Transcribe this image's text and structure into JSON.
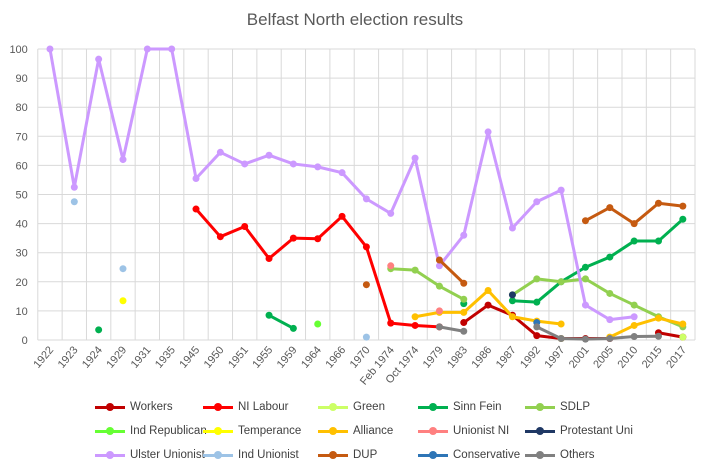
{
  "chart_data": {
    "type": "line",
    "title": "Belfast North election results",
    "xlabel": "",
    "ylabel": "",
    "ylim": [
      0,
      100
    ],
    "yticks": [
      0,
      10,
      20,
      30,
      40,
      50,
      60,
      70,
      80,
      90,
      100
    ],
    "grid": true,
    "legend_position": "bottom",
    "categories": [
      "1922",
      "1923",
      "1924",
      "1929",
      "1931",
      "1935",
      "1945",
      "1950",
      "1951",
      "1955",
      "1959",
      "1964",
      "1966",
      "1970",
      "Feb 1974",
      "Oct 1974",
      "1979",
      "1983",
      "1986",
      "1987",
      "1992",
      "1997",
      "2001",
      "2005",
      "2010",
      "2015",
      "2017"
    ],
    "series": [
      {
        "name": "Workers",
        "color": "#c00000",
        "values": [
          null,
          null,
          null,
          null,
          null,
          null,
          null,
          null,
          null,
          null,
          null,
          null,
          null,
          null,
          null,
          null,
          null,
          6,
          12,
          8.5,
          1.5,
          0.5,
          0.5,
          0.5,
          null,
          2.5,
          1
        ]
      },
      {
        "name": "NI Labour",
        "color": "#ff0000",
        "values": [
          null,
          null,
          null,
          null,
          null,
          null,
          45,
          35.5,
          39,
          28,
          35,
          34.8,
          42.5,
          32,
          5.8,
          5,
          4.5,
          null,
          null,
          null,
          null,
          null,
          null,
          null,
          null,
          null,
          null
        ]
      },
      {
        "name": "Green",
        "color": "#ccff66",
        "values": [
          null,
          null,
          null,
          null,
          null,
          null,
          null,
          null,
          null,
          null,
          null,
          null,
          null,
          null,
          null,
          null,
          null,
          null,
          null,
          null,
          null,
          0.5,
          null,
          null,
          null,
          null,
          1
        ]
      },
      {
        "name": "Sinn Fein",
        "color": "#00b050",
        "values": [
          null,
          null,
          3.5,
          null,
          null,
          null,
          null,
          null,
          null,
          8.5,
          4,
          null,
          null,
          null,
          null,
          null,
          null,
          12.5,
          null,
          13.5,
          13,
          20,
          25,
          28.5,
          34,
          34,
          41.5
        ]
      },
      {
        "name": "SDLP",
        "color": "#92d050",
        "values": [
          null,
          null,
          null,
          null,
          null,
          null,
          null,
          null,
          null,
          null,
          null,
          null,
          null,
          null,
          24.5,
          24,
          18.5,
          14,
          null,
          15.5,
          21,
          20,
          21,
          16,
          12,
          8,
          4.5
        ]
      },
      {
        "name": "Ind Republican",
        "color": "#66ff33",
        "values": [
          null,
          null,
          null,
          null,
          null,
          null,
          null,
          null,
          null,
          null,
          null,
          5.5,
          null,
          null,
          null,
          null,
          null,
          null,
          null,
          null,
          null,
          null,
          null,
          null,
          null,
          null,
          null
        ]
      },
      {
        "name": "Temperance",
        "color": "#ffff00",
        "values": [
          null,
          null,
          null,
          13.5,
          null,
          null,
          null,
          null,
          null,
          null,
          null,
          null,
          null,
          null,
          null,
          null,
          null,
          null,
          null,
          null,
          null,
          null,
          null,
          null,
          null,
          null,
          null
        ]
      },
      {
        "name": "Alliance",
        "color": "#ffc000",
        "values": [
          null,
          null,
          null,
          null,
          null,
          null,
          null,
          null,
          null,
          null,
          null,
          null,
          null,
          null,
          null,
          8,
          9.5,
          9.5,
          17,
          8,
          6.5,
          5.5,
          null,
          1,
          5,
          7.5,
          5.5
        ]
      },
      {
        "name": "Unionist NI",
        "color": "#ff8080",
        "values": [
          null,
          null,
          null,
          null,
          null,
          null,
          null,
          null,
          null,
          null,
          null,
          null,
          null,
          null,
          25.5,
          null,
          10,
          null,
          null,
          null,
          null,
          null,
          null,
          null,
          null,
          null,
          null
        ]
      },
      {
        "name": "Protestant Uni",
        "color": "#1f3864",
        "values": [
          null,
          null,
          null,
          null,
          null,
          null,
          null,
          null,
          null,
          null,
          null,
          null,
          null,
          null,
          null,
          null,
          null,
          null,
          null,
          15.5,
          null,
          null,
          null,
          null,
          null,
          null,
          null
        ]
      },
      {
        "name": "Ulster Unionist",
        "color": "#cc99ff",
        "values": [
          100,
          52.5,
          96.5,
          62,
          100,
          100,
          55.5,
          64.5,
          60.5,
          63.5,
          60.5,
          59.5,
          57.5,
          48.5,
          43.5,
          62.5,
          25.5,
          36,
          71.5,
          38.5,
          47.5,
          51.5,
          12,
          7,
          8,
          null,
          null
        ]
      },
      {
        "name": "Ind Unionist",
        "color": "#9dc3e6",
        "values": [
          null,
          47.5,
          null,
          24.5,
          null,
          null,
          null,
          null,
          null,
          null,
          null,
          null,
          null,
          1,
          null,
          null,
          null,
          null,
          null,
          null,
          null,
          null,
          null,
          null,
          null,
          null,
          null
        ]
      },
      {
        "name": "DUP",
        "color": "#c55a11",
        "values": [
          null,
          null,
          null,
          null,
          null,
          null,
          null,
          null,
          null,
          null,
          null,
          null,
          null,
          19,
          null,
          null,
          27.5,
          19.5,
          null,
          null,
          null,
          null,
          41,
          45.5,
          40,
          47,
          46
        ]
      },
      {
        "name": "Conservative",
        "color": "#2e75b6",
        "values": [
          null,
          null,
          null,
          null,
          null,
          null,
          null,
          null,
          null,
          null,
          null,
          null,
          null,
          null,
          null,
          null,
          null,
          null,
          null,
          null,
          6,
          null,
          null,
          null,
          null,
          null,
          null
        ]
      },
      {
        "name": "Others",
        "color": "#808080",
        "values": [
          null,
          null,
          null,
          null,
          null,
          null,
          null,
          null,
          null,
          null,
          null,
          null,
          null,
          null,
          null,
          null,
          4.5,
          3,
          null,
          null,
          4.5,
          0.5,
          0.3,
          0.5,
          1.2,
          1.3,
          null
        ]
      }
    ]
  }
}
